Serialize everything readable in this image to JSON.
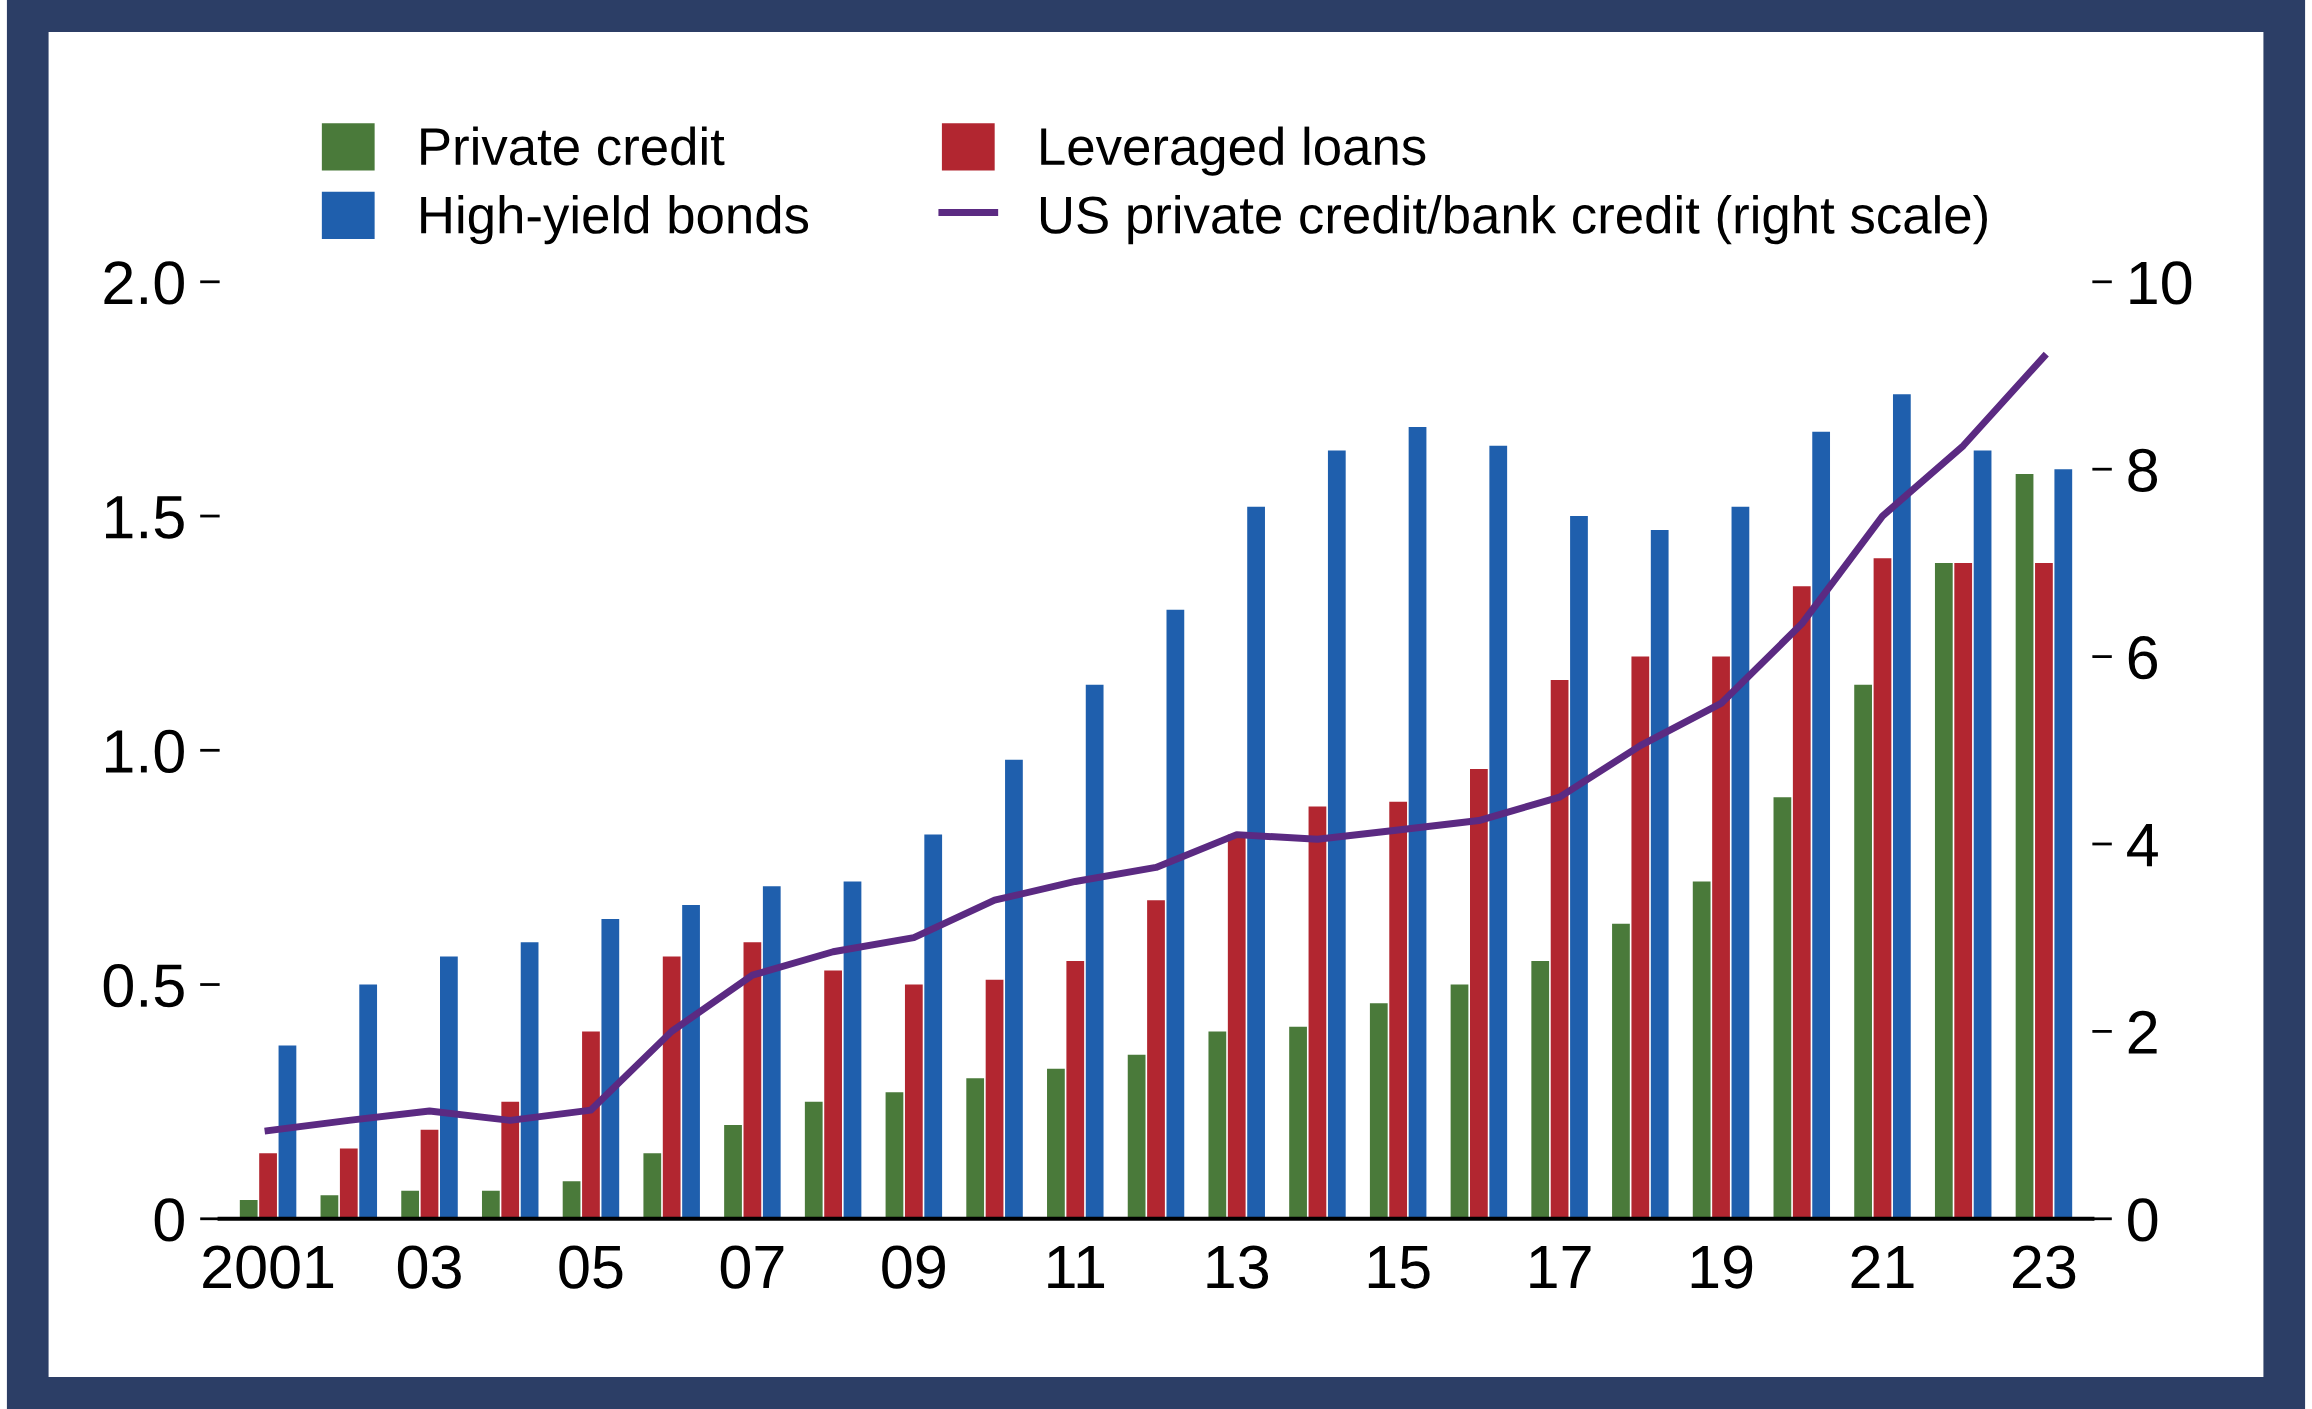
{
  "chart_data": {
    "type": "bar",
    "categories": [
      "2001",
      null,
      "03",
      null,
      "05",
      null,
      "07",
      null,
      "09",
      null,
      "11",
      null,
      "13",
      null,
      "15",
      null,
      "17",
      null,
      "19",
      null,
      "21",
      null,
      "23"
    ],
    "series": [
      {
        "name": "Private credit",
        "color": "#4a7a3a",
        "values": [
          0.04,
          0.05,
          0.06,
          0.06,
          0.08,
          0.14,
          0.2,
          0.25,
          0.27,
          0.3,
          0.32,
          0.35,
          0.4,
          0.41,
          0.46,
          0.5,
          0.55,
          0.63,
          0.72,
          0.9,
          1.14,
          1.4,
          1.59
        ]
      },
      {
        "name": "Leveraged loans",
        "color": "#b22630",
        "values": [
          0.14,
          0.15,
          0.19,
          0.25,
          0.4,
          0.56,
          0.59,
          0.53,
          0.5,
          0.51,
          0.55,
          0.68,
          0.82,
          0.88,
          0.89,
          0.96,
          1.15,
          1.2,
          1.2,
          1.35,
          1.41,
          1.4,
          1.4
        ]
      },
      {
        "name": "High-yield bonds",
        "color": "#1f5fad",
        "values": [
          0.37,
          0.5,
          0.56,
          0.59,
          0.64,
          0.67,
          0.71,
          0.72,
          0.82,
          0.98,
          1.14,
          1.3,
          1.52,
          1.64,
          1.69,
          1.65,
          1.5,
          1.47,
          1.52,
          1.68,
          1.76,
          1.64,
          1.6
        ]
      },
      {
        "name": "US private credit/bank credit (right scale)",
        "color": "#5b2a82",
        "type": "line",
        "axis": "y2",
        "values": [
          0.94,
          1.05,
          1.15,
          1.05,
          1.16,
          2.0,
          2.6,
          2.85,
          3.0,
          3.4,
          3.6,
          3.75,
          4.1,
          4.05,
          4.15,
          4.25,
          4.5,
          5.05,
          5.5,
          6.35,
          7.5,
          8.25,
          9.2
        ]
      }
    ],
    "ylim": [
      0,
      2.0
    ],
    "yticks": [
      {
        "value": 0,
        "label": "0"
      },
      0.5,
      {
        "value": 1,
        "label": "1.0"
      },
      1.5,
      {
        "value": 2,
        "label": "2.0"
      }
    ],
    "y2lim": [
      0,
      10
    ],
    "y2ticks": [
      0,
      2,
      4,
      6,
      8,
      10
    ],
    "legend": "top",
    "grid": false,
    "marker": "none",
    "line_style": "solid"
  }
}
